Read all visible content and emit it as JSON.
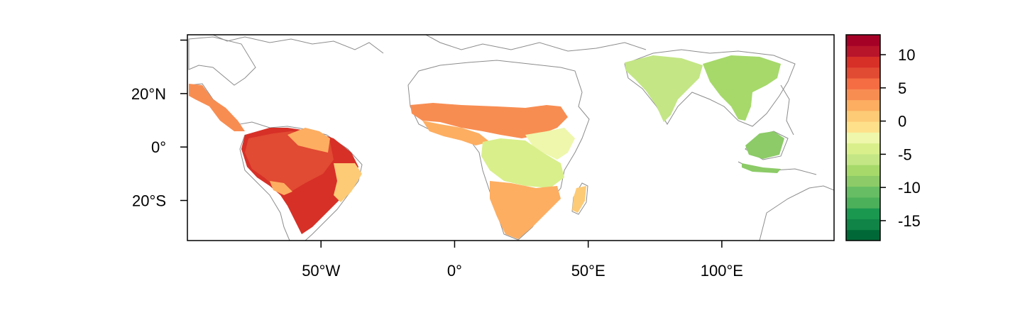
{
  "map": {
    "lon_range": [
      -100,
      142
    ],
    "lat_range": [
      -35,
      42
    ],
    "x_axis": {
      "ticks": [
        {
          "value": -50,
          "label": "50°W"
        },
        {
          "value": 0,
          "label": "0°"
        },
        {
          "value": 50,
          "label": "50°E"
        },
        {
          "value": 100,
          "label": "100°E"
        }
      ]
    },
    "y_axis": {
      "ticks": [
        {
          "value": 20,
          "label": "20°N"
        },
        {
          "value": 0,
          "label": "0°"
        },
        {
          "value": -20,
          "label": "20°S"
        }
      ]
    },
    "border_color": "#8c8c8c"
  },
  "legend": {
    "min": -18,
    "max": 13,
    "step": 2,
    "labels": [
      {
        "value": 10,
        "label": "10"
      },
      {
        "value": 5,
        "label": "5"
      },
      {
        "value": 0,
        "label": "0"
      },
      {
        "value": -5,
        "label": "-5"
      },
      {
        "value": -10,
        "label": "-10"
      },
      {
        "value": -15,
        "label": "-15"
      }
    ],
    "colors": [
      "#006837",
      "#0f8446",
      "#1a9850",
      "#4cb05b",
      "#66bd63",
      "#8ccb67",
      "#a6d96a",
      "#c4e685",
      "#d9ef8b",
      "#eef7ac",
      "#fee08b",
      "#fdcb76",
      "#fdae61",
      "#f88d52",
      "#f46d43",
      "#e14a33",
      "#d73027",
      "#b8152b",
      "#a50026"
    ]
  },
  "regions": [
    {
      "name": "central-america",
      "color": "#f88d52"
    },
    {
      "name": "amazon-north",
      "color": "#d73027"
    },
    {
      "name": "amazon-core",
      "color": "#e14a33"
    },
    {
      "name": "brazil-south",
      "color": "#fdae61"
    },
    {
      "name": "brazil-east",
      "color": "#fdcb76"
    },
    {
      "name": "sahel-band",
      "color": "#f88d52"
    },
    {
      "name": "west-africa-coast",
      "color": "#fdae61"
    },
    {
      "name": "central-africa",
      "color": "#eef7ac"
    },
    {
      "name": "southern-africa",
      "color": "#d9ef8b"
    },
    {
      "name": "east-africa",
      "color": "#fdae61"
    },
    {
      "name": "madagascar",
      "color": "#fdcb76"
    },
    {
      "name": "south-asia",
      "color": "#c4e685"
    },
    {
      "name": "indochina",
      "color": "#a6d96a"
    },
    {
      "name": "indonesia",
      "color": "#8ccb67"
    }
  ]
}
